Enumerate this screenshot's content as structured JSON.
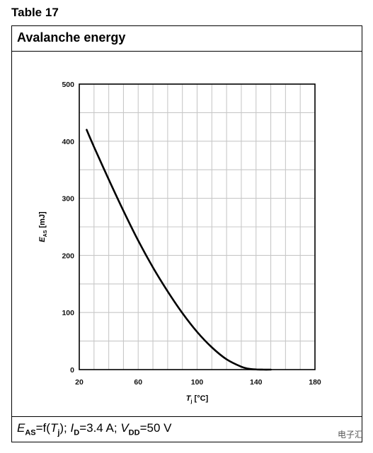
{
  "table_label": "Table 17",
  "header_title": "Avalanche energy",
  "footer": {
    "e_sym": "E",
    "e_sub": "AS",
    "eq1": "=f(",
    "t_sym": "T",
    "t_sub": "j",
    "eq2": "); ",
    "i_sym": "I",
    "i_sub": "D",
    "eq3": "=3.4 A; ",
    "v_sym": "V",
    "v_sub": "DD",
    "eq4": "=50 V"
  },
  "watermark": "电子汇",
  "chart_data": {
    "type": "line",
    "title": "",
    "xlabel_sym": "T",
    "xlabel_sub": "j",
    "xlabel_unit": " [°C]",
    "ylabel_sym": "E",
    "ylabel_sub": "AS",
    "ylabel_unit": " [mJ]",
    "xlim": [
      20,
      180
    ],
    "ylim": [
      0,
      500
    ],
    "xticks": [
      20,
      60,
      100,
      140,
      180
    ],
    "yticks": [
      0,
      100,
      200,
      300,
      400,
      500
    ],
    "x_grid_step": 10,
    "y_grid_step": 50,
    "grid": true,
    "series": [
      {
        "color": "#000000",
        "x": [
          25,
          30,
          40,
          50,
          60,
          70,
          80,
          90,
          100,
          110,
          120,
          130,
          135,
          140,
          145,
          150
        ],
        "y": [
          420,
          390,
          333,
          278,
          226,
          179,
          137,
          99,
          66,
          39,
          18,
          5,
          1.5,
          0.3,
          0,
          0
        ]
      }
    ]
  }
}
